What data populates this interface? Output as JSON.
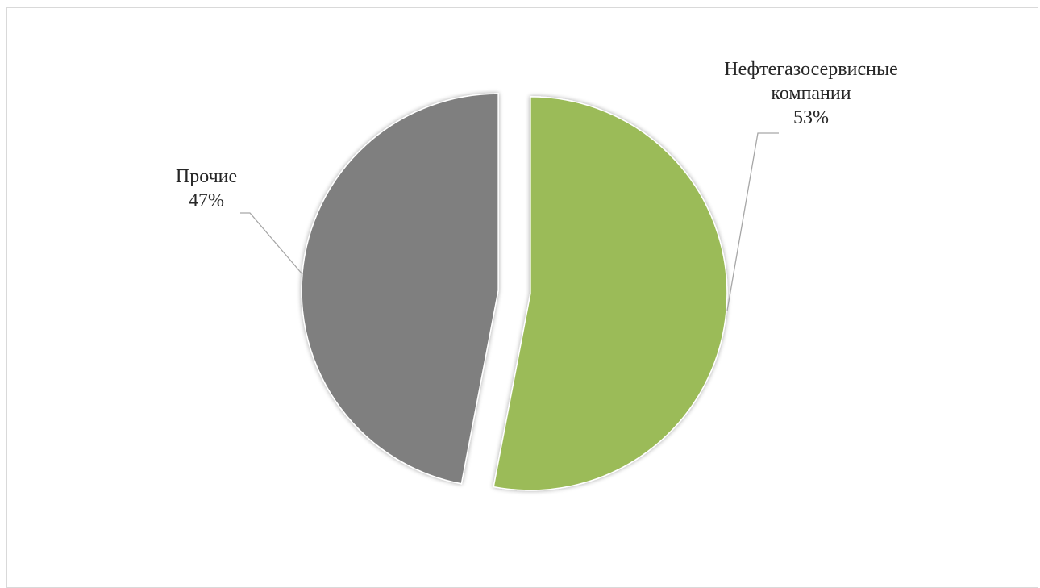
{
  "chart_data": {
    "type": "pie",
    "title": "",
    "exploded": true,
    "slices": [
      {
        "label_lines": [
          "Нефтегазосервисные",
          "компании"
        ],
        "percent_label": "53%",
        "value": 53,
        "color": "#9bbb59"
      },
      {
        "label_lines": [
          "Прочие"
        ],
        "percent_label": "47%",
        "value": 47,
        "color": "#7f7f7f"
      }
    ],
    "leader_line_color": "#a6a6a6"
  }
}
